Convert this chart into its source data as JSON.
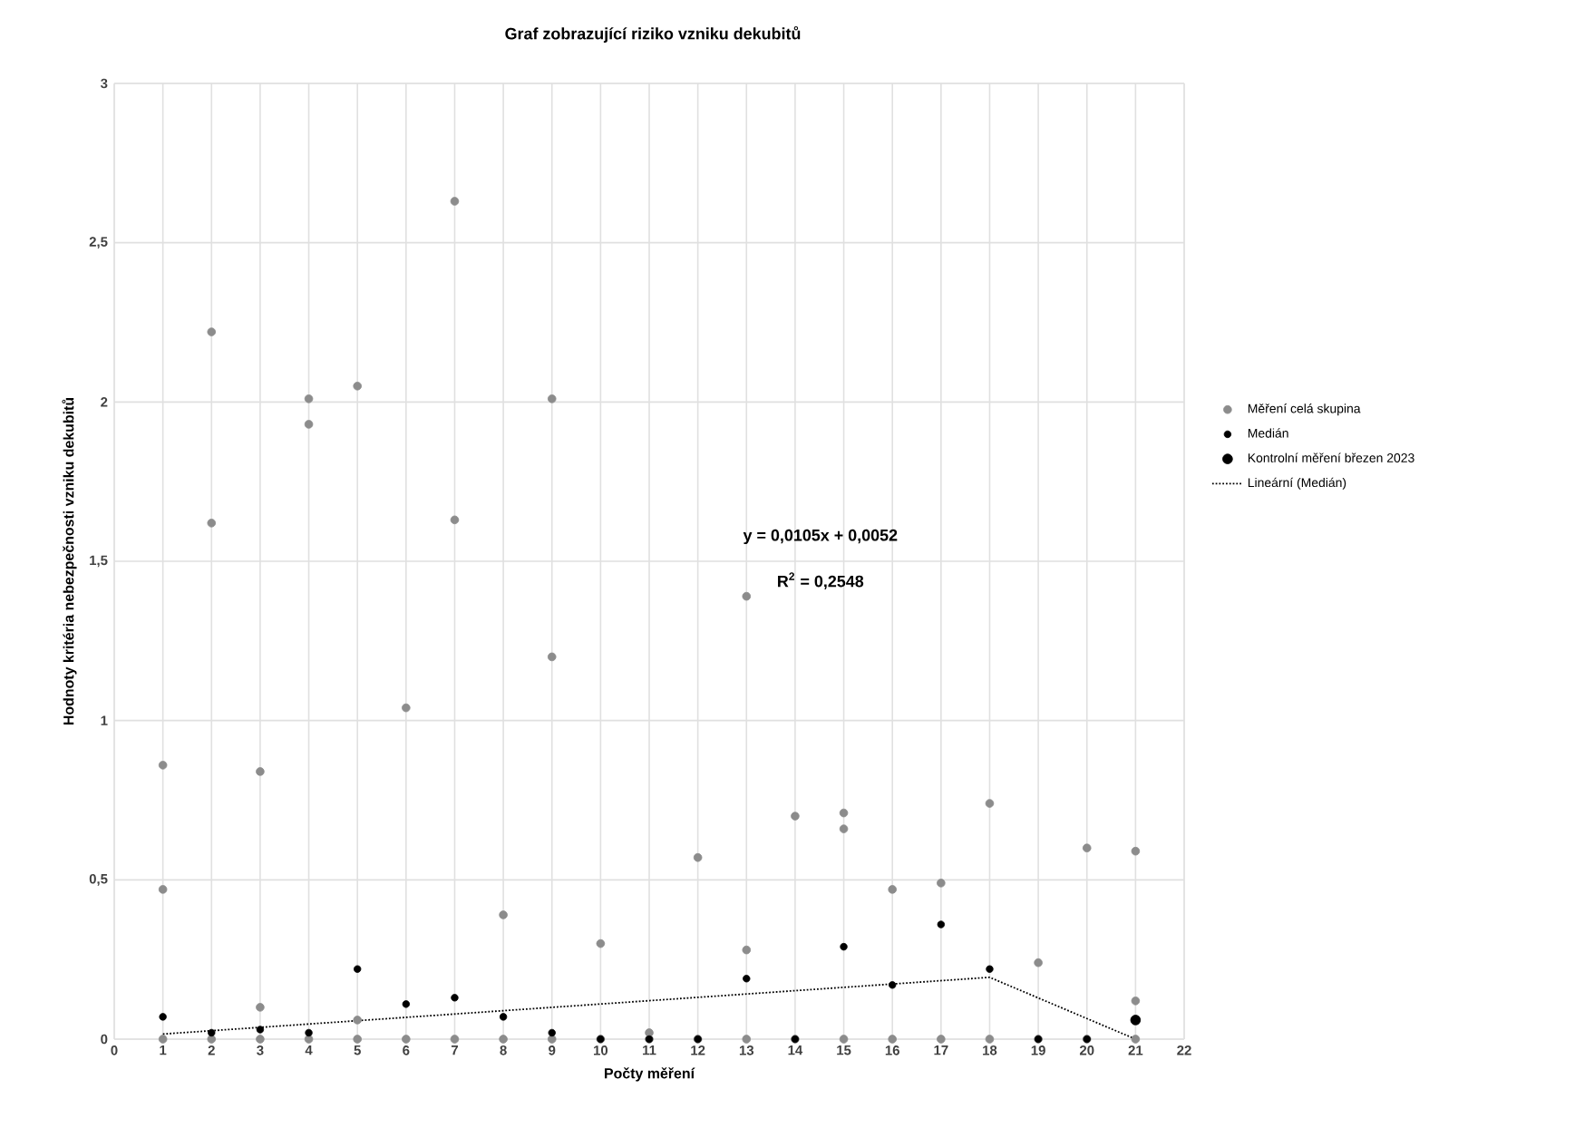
{
  "chart_data": {
    "type": "scatter",
    "title": "Graf zobrazující riziko vzniku dekubitů",
    "xlabel": "Počty měření",
    "ylabel": "Hodnoty kritéria nebezpečnosti vzniku dekubitů",
    "xlim": [
      0,
      22
    ],
    "ylim": [
      0,
      3
    ],
    "xticks": [
      0,
      1,
      2,
      3,
      4,
      5,
      6,
      7,
      8,
      9,
      10,
      11,
      12,
      13,
      14,
      15,
      16,
      17,
      18,
      19,
      20,
      21,
      22
    ],
    "yticks": [
      0,
      {
        "value": 0.5,
        "label": "0,5"
      },
      1,
      {
        "value": 1.5,
        "label": "1,5"
      },
      2,
      {
        "value": 2.5,
        "label": "2,5"
      },
      3
    ],
    "grid": true,
    "legend": "right",
    "annotations": [
      "y = 0,0105x + 0,0052",
      "R$^{2}$ = 0,2548"
    ],
    "series": [
      {
        "name": "Měření celá skupina",
        "color": "#8c8c8c",
        "marker": "circle",
        "x": [
          1,
          1,
          1,
          2,
          2,
          2,
          3,
          3,
          3,
          4,
          4,
          4,
          5,
          5,
          5,
          6,
          6,
          7,
          7,
          7,
          8,
          8,
          9,
          9,
          9,
          10,
          10,
          11,
          11,
          12,
          12,
          13,
          13,
          13,
          14,
          14,
          15,
          15,
          15,
          16,
          16,
          17,
          17,
          18,
          18,
          19,
          19,
          20,
          20,
          21,
          21,
          21
        ],
        "values": [
          0.86,
          0.47,
          0.0,
          2.22,
          1.62,
          0.0,
          0.84,
          0.1,
          0.0,
          2.01,
          1.93,
          0.0,
          2.05,
          0.06,
          0.0,
          1.04,
          0.0,
          2.63,
          1.63,
          0.0,
          0.39,
          0.0,
          2.01,
          1.2,
          0.0,
          0.3,
          0.0,
          0.02,
          0.0,
          0.57,
          0.0,
          1.39,
          0.28,
          0.0,
          0.7,
          0.0,
          0.71,
          0.66,
          0.0,
          0.47,
          0.0,
          0.49,
          0.0,
          0.74,
          0.0,
          0.24,
          0.0,
          0.6,
          0.0,
          0.59,
          0.12,
          0.0
        ]
      },
      {
        "name": "Medián",
        "color": "#000000",
        "marker": "circle",
        "x": [
          1,
          2,
          3,
          4,
          5,
          6,
          7,
          8,
          9,
          10,
          11,
          12,
          13,
          14,
          15,
          16,
          17,
          18,
          19,
          20
        ],
        "values": [
          0.07,
          0.02,
          0.03,
          0.02,
          0.22,
          0.11,
          0.13,
          0.07,
          0.02,
          0.0,
          0.0,
          0.0,
          0.19,
          0.0,
          0.29,
          0.17,
          0.36,
          0.22,
          0.0,
          0.0
        ]
      },
      {
        "name": "Kontrolní měření březen 2023",
        "color": "#000000",
        "marker": "circle",
        "x": [
          21
        ],
        "values": [
          0.06
        ]
      },
      {
        "name": "Lineární (Medián)",
        "type": "line",
        "color": "#000000",
        "marker": "none",
        "line_style": "dotted",
        "x": [
          1,
          18,
          21
        ],
        "values": [
          0.016,
          0.194,
          0.0
        ]
      }
    ]
  }
}
